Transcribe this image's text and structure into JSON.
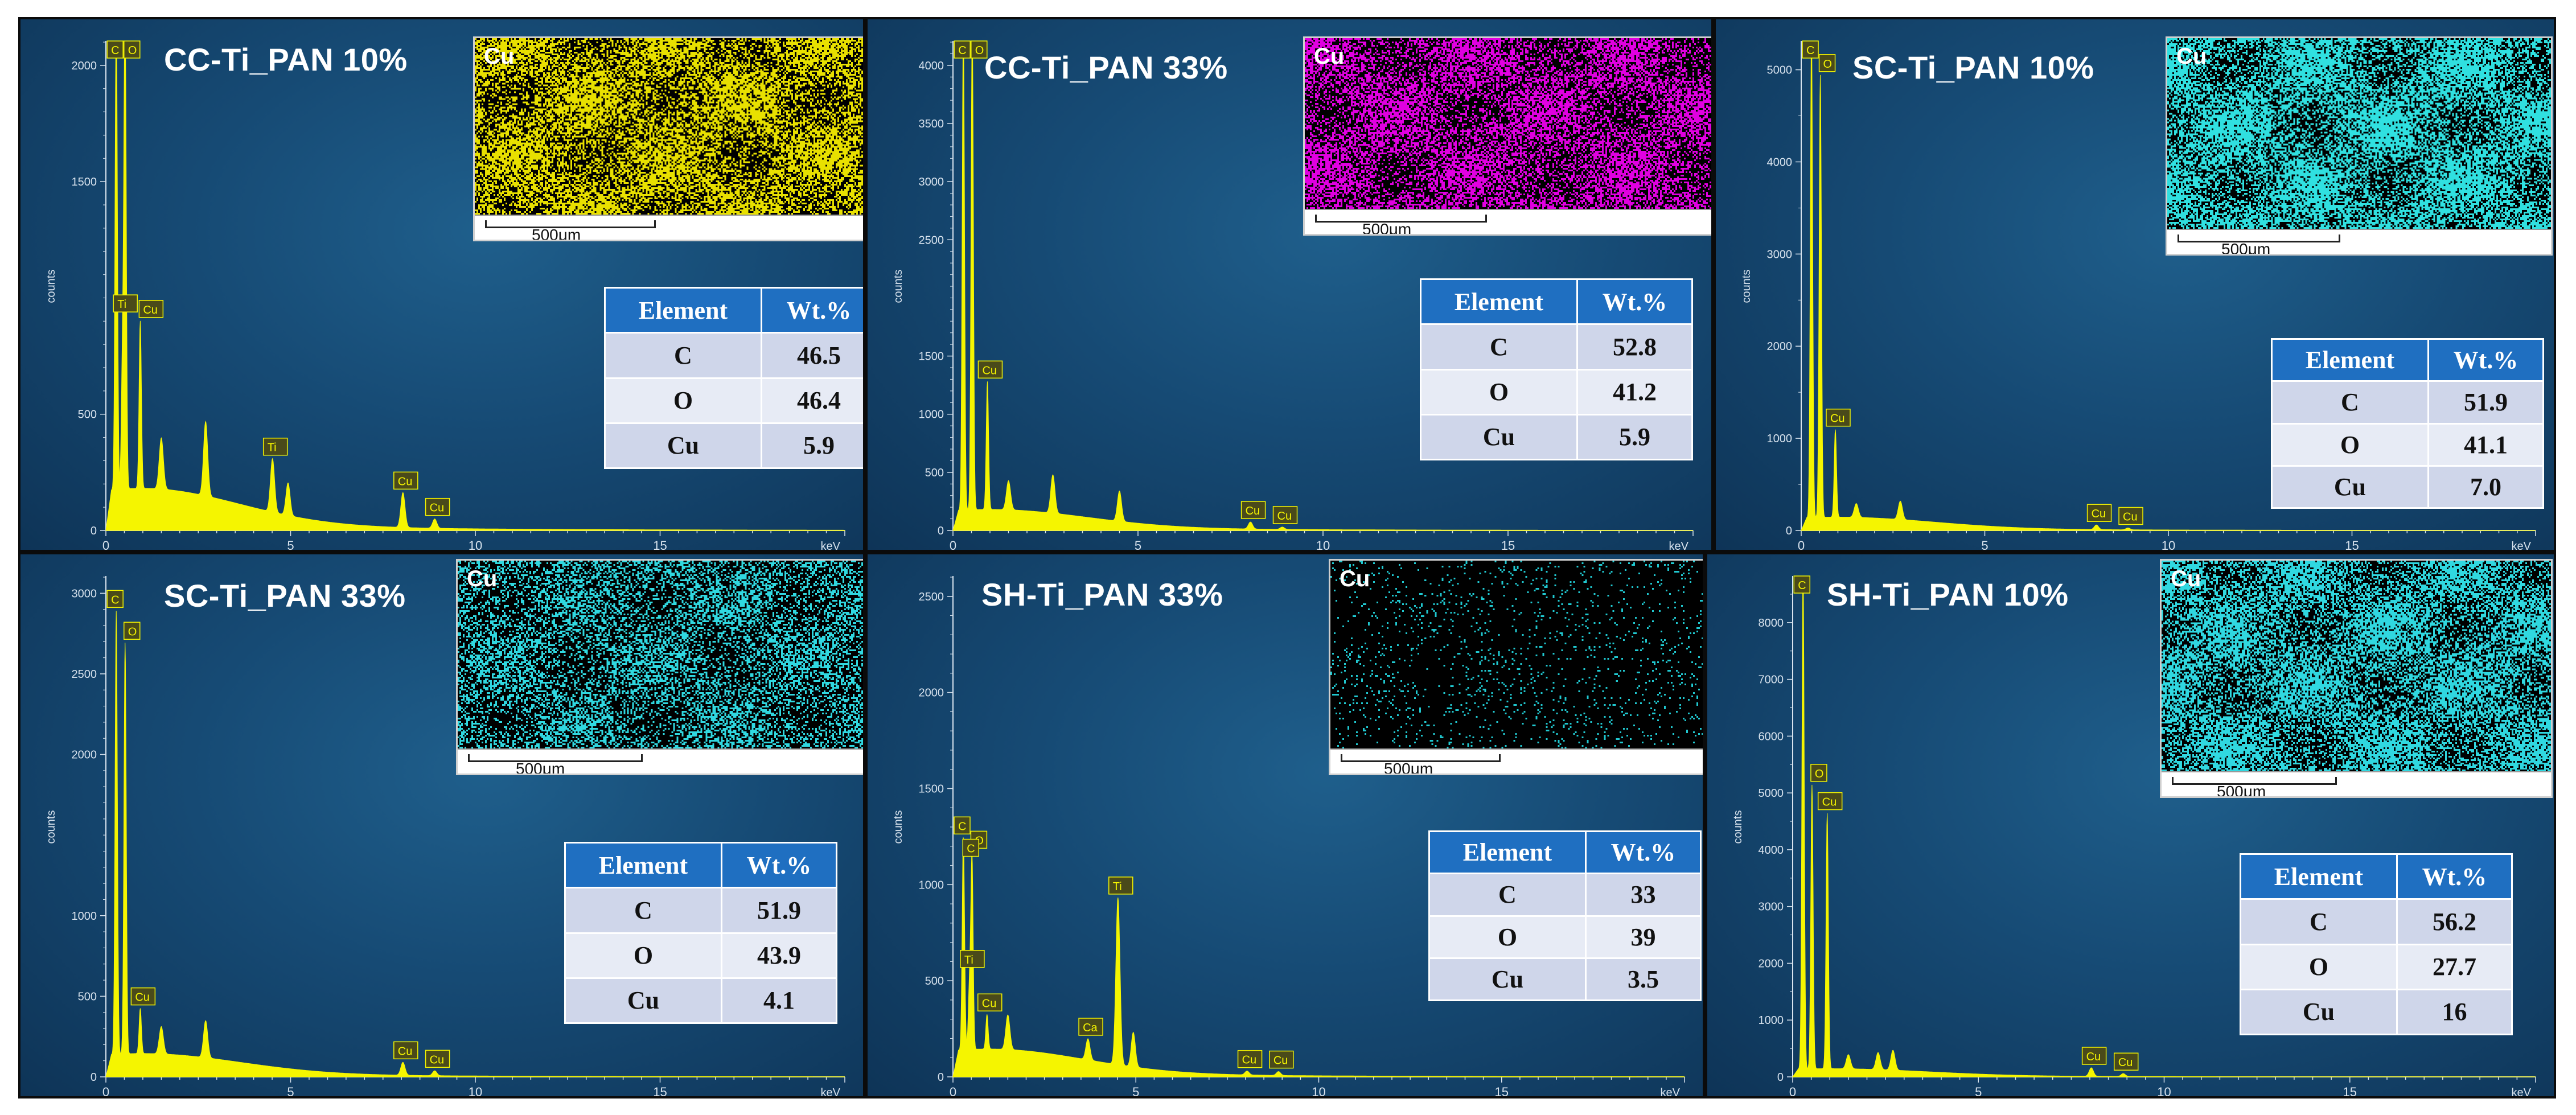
{
  "colors": {
    "spectrum": "#f5f500",
    "axis": "#d8e3ee",
    "peak_label_bg": "#4a4a1a",
    "peak_label_text": "#f5f500"
  },
  "table_headers": {
    "element": "Element",
    "wt": "Wt.%"
  },
  "x_unit_label": "keV",
  "y_axis_label": "counts",
  "scalebar_label": "500μm",
  "chart_data": [
    {
      "type": "line",
      "title": "CC-Ti_PAN 10%",
      "map_label": "Cu",
      "map_color": "#e8e000",
      "xlim": [
        0,
        20
      ],
      "ylim": [
        0,
        2100
      ],
      "xticks": [
        0,
        5,
        10,
        15
      ],
      "yticks": [
        0,
        500,
        1500,
        2000
      ],
      "peaks": [
        {
          "x": 0.28,
          "y": 2100,
          "label": "C"
        },
        {
          "x": 0.52,
          "y": 2100,
          "label": "O"
        },
        {
          "x": 0.45,
          "y": 560,
          "label": "Ti"
        },
        {
          "x": 0.93,
          "y": 720,
          "label": "Cu"
        },
        {
          "x": 4.51,
          "y": 230,
          "label": "Ti"
        },
        {
          "x": 8.04,
          "y": 150,
          "label": "Cu"
        },
        {
          "x": 8.9,
          "y": 40,
          "label": "Cu"
        }
      ],
      "minor_peaks": [
        {
          "x": 1.5,
          "y": 220
        },
        {
          "x": 2.7,
          "y": 320
        },
        {
          "x": 4.93,
          "y": 140
        }
      ],
      "baseline": 150,
      "table": [
        {
          "element": "C",
          "wt": "46.5"
        },
        {
          "element": "O",
          "wt": "46.4"
        },
        {
          "element": "Cu",
          "wt": "5.9"
        }
      ]
    },
    {
      "type": "line",
      "title": "CC-Ti_PAN 33%",
      "map_label": "Cu",
      "map_color": "#e000e0",
      "xlim": [
        0,
        20
      ],
      "ylim": [
        0,
        4200
      ],
      "xticks": [
        0,
        5,
        10,
        15
      ],
      "yticks": [
        0,
        500,
        1000,
        1500,
        2500,
        3000,
        3500,
        4000
      ],
      "peaks": [
        {
          "x": 0.28,
          "y": 4200,
          "label": "C"
        },
        {
          "x": 0.52,
          "y": 4200,
          "label": "O"
        },
        {
          "x": 0.93,
          "y": 1100,
          "label": "Cu"
        },
        {
          "x": 8.04,
          "y": 60,
          "label": "Cu"
        },
        {
          "x": 8.9,
          "y": 20,
          "label": "Cu"
        }
      ],
      "minor_peaks": [
        {
          "x": 1.5,
          "y": 250
        },
        {
          "x": 2.7,
          "y": 330
        },
        {
          "x": 4.5,
          "y": 260
        }
      ],
      "baseline": 150,
      "table": [
        {
          "element": "C",
          "wt": "52.8"
        },
        {
          "element": "O",
          "wt": "41.2"
        },
        {
          "element": "Cu",
          "wt": "5.9"
        }
      ]
    },
    {
      "type": "line",
      "title": "SC-Ti_PAN 10%",
      "map_label": "Cu",
      "map_color": "#30e0e0",
      "xlim": [
        0,
        20
      ],
      "ylim": [
        0,
        5300
      ],
      "xticks": [
        0,
        5,
        10,
        15
      ],
      "yticks": [
        0,
        1000,
        2000,
        3000,
        4000,
        5000
      ],
      "peaks": [
        {
          "x": 0.28,
          "y": 5300,
          "label": "C"
        },
        {
          "x": 0.52,
          "y": 4800,
          "label": "O"
        },
        {
          "x": 0.93,
          "y": 950,
          "label": "Cu"
        },
        {
          "x": 8.04,
          "y": 50,
          "label": "Cu"
        },
        {
          "x": 8.9,
          "y": 20,
          "label": "Cu"
        }
      ],
      "minor_peaks": [
        {
          "x": 1.5,
          "y": 150
        },
        {
          "x": 2.7,
          "y": 200
        }
      ],
      "baseline": 120,
      "table": [
        {
          "element": "C",
          "wt": "51.9"
        },
        {
          "element": "O",
          "wt": "41.1"
        },
        {
          "element": "Cu",
          "wt": "7.0"
        }
      ]
    },
    {
      "type": "line",
      "title": "SC-Ti_PAN 33%",
      "map_label": "Cu",
      "map_color": "#30d8e0",
      "xlim": [
        0,
        20
      ],
      "ylim": [
        0,
        3100
      ],
      "xticks": [
        0,
        5,
        10,
        15
      ],
      "yticks": [
        0,
        500,
        1000,
        2000,
        2500,
        3000
      ],
      "peaks": [
        {
          "x": 0.28,
          "y": 2750,
          "label": "C"
        },
        {
          "x": 0.52,
          "y": 2550,
          "label": "O"
        },
        {
          "x": 0.93,
          "y": 280,
          "label": "Cu"
        },
        {
          "x": 8.04,
          "y": 80,
          "label": "Cu"
        },
        {
          "x": 8.9,
          "y": 30,
          "label": "Cu"
        }
      ],
      "minor_peaks": [
        {
          "x": 1.5,
          "y": 170
        },
        {
          "x": 2.7,
          "y": 230
        }
      ],
      "baseline": 120,
      "table": [
        {
          "element": "C",
          "wt": "51.9"
        },
        {
          "element": "O",
          "wt": "43.9"
        },
        {
          "element": "Cu",
          "wt": "4.1"
        }
      ]
    },
    {
      "type": "line",
      "title": "SH-Ti_PAN 33%",
      "map_label": "Cu",
      "map_color": "#20c8d0",
      "xlim": [
        0,
        20
      ],
      "ylim": [
        0,
        2600
      ],
      "xticks": [
        0,
        5,
        10,
        15
      ],
      "yticks": [
        0,
        500,
        1000,
        1500,
        2000,
        2500
      ],
      "peaks": [
        {
          "x": 0.28,
          "y": 900,
          "label": "C"
        },
        {
          "x": 0.52,
          "y": 1000,
          "label": "O"
        },
        {
          "x": 0.45,
          "y": 320,
          "label": "Ti"
        },
        {
          "x": 0.3,
          "y": 250,
          "label": "C"
        },
        {
          "x": 0.93,
          "y": 180,
          "label": "Cu"
        },
        {
          "x": 3.69,
          "y": 110,
          "label": "Ca"
        },
        {
          "x": 4.51,
          "y": 870,
          "label": "Ti"
        },
        {
          "x": 8.04,
          "y": 20,
          "label": "Cu"
        },
        {
          "x": 8.9,
          "y": 20,
          "label": "Cu"
        }
      ],
      "minor_peaks": [
        {
          "x": 1.5,
          "y": 180
        },
        {
          "x": 4.93,
          "y": 180
        }
      ],
      "baseline": 120,
      "table": [
        {
          "element": "C",
          "wt": "33"
        },
        {
          "element": "O",
          "wt": "39"
        },
        {
          "element": "Cu",
          "wt": "3.5"
        }
      ]
    },
    {
      "type": "line",
      "title": "SH-Ti_PAN 10%",
      "map_label": "Cu",
      "map_color": "#30d8e0",
      "xlim": [
        0,
        20
      ],
      "ylim": [
        0,
        8800
      ],
      "xticks": [
        0,
        5,
        10,
        15
      ],
      "yticks": [
        0,
        1000,
        2000,
        3000,
        4000,
        5000,
        6000,
        7000,
        8000
      ],
      "peaks": [
        {
          "x": 0.28,
          "y": 8800,
          "label": "C"
        },
        {
          "x": 0.52,
          "y": 5000,
          "label": "O"
        },
        {
          "x": 0.93,
          "y": 4500,
          "label": "Cu"
        },
        {
          "x": 8.04,
          "y": 150,
          "label": "Cu"
        },
        {
          "x": 8.9,
          "y": 50,
          "label": "Cu"
        }
      ],
      "minor_peaks": [
        {
          "x": 1.5,
          "y": 250
        },
        {
          "x": 2.3,
          "y": 300
        },
        {
          "x": 2.7,
          "y": 350
        }
      ],
      "baseline": 120,
      "table": [
        {
          "element": "C",
          "wt": "56.2"
        },
        {
          "element": "O",
          "wt": "27.7"
        },
        {
          "element": "Cu",
          "wt": "16"
        }
      ]
    }
  ]
}
